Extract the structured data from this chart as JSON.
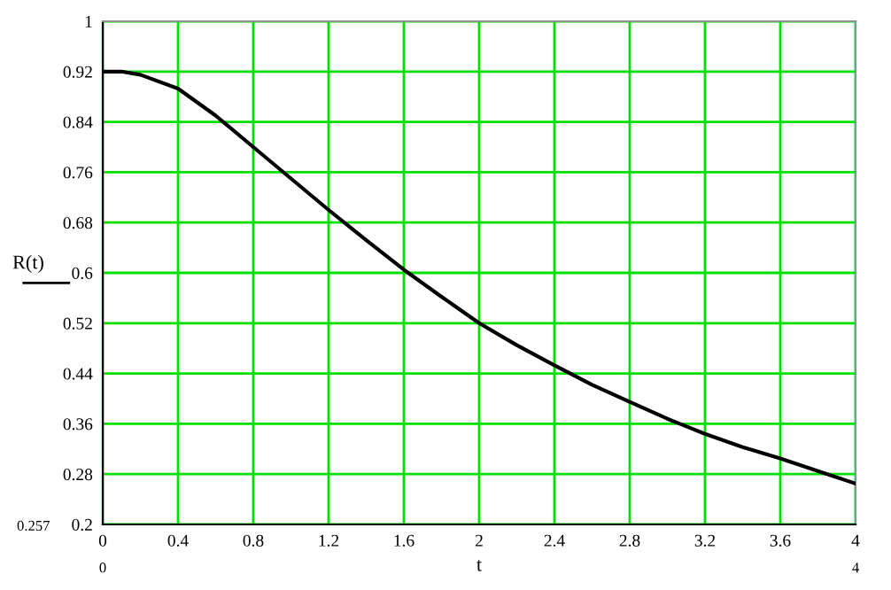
{
  "chart_data": {
    "type": "line",
    "xlabel": "t",
    "ylabel": "R(t)",
    "x": [
      0,
      0.1,
      0.2,
      0.4,
      0.6,
      0.8,
      1.0,
      1.2,
      1.4,
      1.6,
      1.8,
      2.0,
      2.2,
      2.4,
      2.6,
      2.8,
      3.0,
      3.2,
      3.4,
      3.6,
      3.8,
      4.0
    ],
    "series": [
      {
        "color": "#000000",
        "values": [
          0.92,
          0.92,
          0.915,
          0.893,
          0.85,
          0.8,
          0.75,
          0.7,
          0.652,
          0.605,
          0.562,
          0.52,
          0.485,
          0.453,
          0.422,
          0.395,
          0.368,
          0.344,
          0.323,
          0.305,
          0.285,
          0.265
        ]
      }
    ],
    "xlim": [
      0,
      4
    ],
    "ylim": [
      0.2,
      1
    ],
    "xticks": [
      0,
      0.4,
      0.8,
      1.2,
      1.6,
      2,
      2.4,
      2.8,
      3.2,
      3.6,
      4
    ],
    "yticks": [
      0.2,
      0.28,
      0.36,
      0.44,
      0.52,
      0.6,
      0.68,
      0.76,
      0.84,
      0.92,
      1
    ],
    "grid": true,
    "line_style": "solid",
    "marker": "none",
    "annotations": [
      "0.257",
      "0",
      "4"
    ]
  }
}
